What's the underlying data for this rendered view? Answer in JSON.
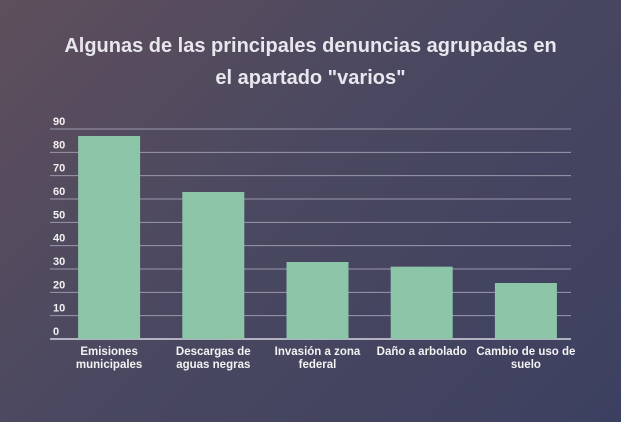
{
  "chart_data": {
    "type": "bar",
    "title_line1": "Algunas de las principales denuncias agrupadas en",
    "title_line2": "el apartado \"varios\"",
    "categories": [
      [
        "Emisiones",
        "municipales"
      ],
      [
        "Descargas de",
        "aguas negras"
      ],
      [
        "Invasión a zona",
        "federal"
      ],
      [
        "Daño a arbolado"
      ],
      [
        "Cambio de uso de",
        "suelo"
      ]
    ],
    "values": [
      87,
      63,
      33,
      31,
      24
    ],
    "ylim": [
      0,
      90
    ],
    "yticks": [
      0,
      10,
      20,
      30,
      40,
      50,
      60,
      70,
      80,
      90
    ],
    "bar_color": "#8cc5a8",
    "grid_color": "#9a98ad",
    "grid": true,
    "xlabel": "",
    "ylabel": ""
  }
}
